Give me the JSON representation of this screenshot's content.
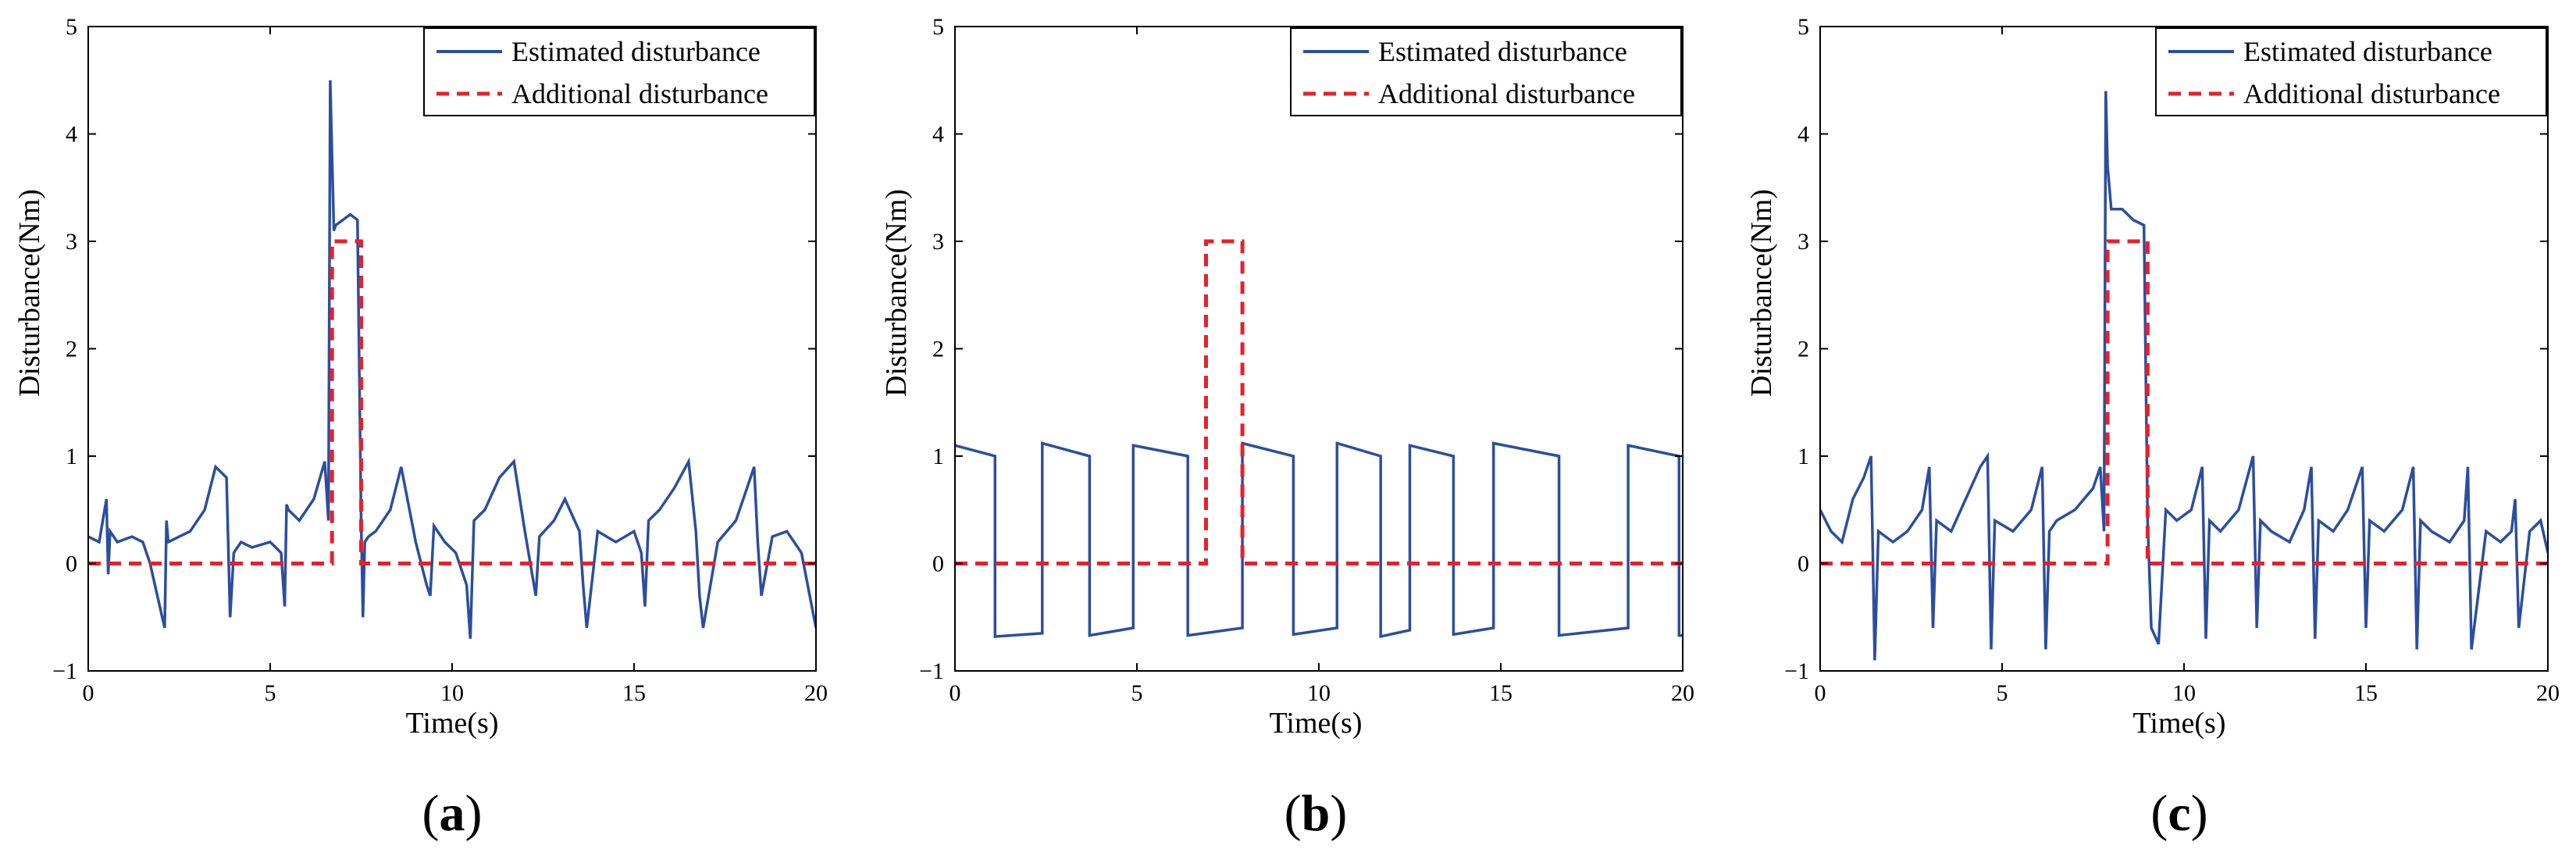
{
  "figure": {
    "background": "#ffffff",
    "estimated_color": "#2b4ea0",
    "additional_color": "#e8202a"
  },
  "chart_data": [
    {
      "type": "line",
      "panel": "a",
      "caption_open": "(",
      "caption_letter": "a",
      "caption_close": ")",
      "xlabel": "Time(s)",
      "ylabel": "Disturbance(Nm)",
      "xlim": [
        0,
        20
      ],
      "ylim": [
        -1,
        5
      ],
      "xticks": [
        0,
        5,
        10,
        15,
        20
      ],
      "yticks": [
        -1,
        0,
        1,
        2,
        3,
        4,
        5
      ],
      "xtick_labels": [
        "0",
        "5",
        "10",
        "15",
        "20"
      ],
      "ytick_labels": [
        "−1",
        "0",
        "1",
        "2",
        "3",
        "4",
        "5"
      ],
      "grid": false,
      "legend_position": "top-right",
      "series": [
        {
          "name": "Estimated disturbance",
          "style": "solid",
          "x": [
            0,
            0.3,
            0.5,
            0.55,
            0.6,
            0.8,
            1.2,
            1.5,
            1.7,
            1.9,
            2.1,
            2.15,
            2.2,
            2.5,
            2.8,
            3.2,
            3.5,
            3.8,
            3.9,
            4.0,
            4.2,
            4.5,
            5.0,
            5.3,
            5.4,
            5.45,
            5.5,
            5.8,
            6.2,
            6.5,
            6.6,
            6.65,
            6.7,
            6.75,
            6.8,
            7.0,
            7.2,
            7.4,
            7.5,
            7.55,
            7.6,
            7.7,
            7.9,
            8.3,
            8.6,
            9.0,
            9.3,
            9.4,
            9.5,
            9.8,
            10.1,
            10.4,
            10.5,
            10.6,
            10.9,
            11.3,
            11.7,
            12.0,
            12.2,
            12.3,
            12.4,
            12.8,
            13.1,
            13.5,
            13.6,
            13.7,
            14.0,
            14.5,
            15.0,
            15.2,
            15.3,
            15.4,
            15.7,
            16.1,
            16.5,
            16.7,
            16.8,
            16.9,
            17.3,
            17.8,
            18.1,
            18.3,
            18.4,
            18.5,
            18.8,
            19.2,
            19.6,
            20.0
          ],
          "y": [
            0.25,
            0.2,
            0.6,
            -0.1,
            0.3,
            0.2,
            0.25,
            0.2,
            0.0,
            -0.3,
            -0.6,
            0.4,
            0.2,
            0.25,
            0.3,
            0.5,
            0.9,
            0.8,
            -0.5,
            0.1,
            0.2,
            0.15,
            0.2,
            0.1,
            -0.4,
            0.55,
            0.5,
            0.4,
            0.6,
            0.95,
            0.4,
            4.5,
            3.8,
            3.1,
            3.15,
            3.2,
            3.25,
            3.2,
            0.4,
            -0.5,
            0.2,
            0.25,
            0.3,
            0.5,
            0.9,
            0.2,
            -0.2,
            -0.3,
            0.35,
            0.2,
            0.1,
            -0.2,
            -0.7,
            0.4,
            0.5,
            0.8,
            0.95,
            0.3,
            -0.1,
            -0.3,
            0.25,
            0.4,
            0.6,
            0.3,
            -0.2,
            -0.6,
            0.3,
            0.2,
            0.3,
            0.1,
            -0.4,
            0.4,
            0.5,
            0.7,
            0.95,
            0.3,
            -0.3,
            -0.6,
            0.2,
            0.4,
            0.7,
            0.9,
            0.2,
            -0.3,
            0.25,
            0.3,
            0.1,
            -0.6
          ]
        },
        {
          "name": "Additional disturbance",
          "style": "dashed",
          "x": [
            0,
            6.7,
            6.7,
            7.5,
            7.5,
            20
          ],
          "y": [
            0,
            0,
            3,
            3,
            0,
            0
          ]
        }
      ]
    },
    {
      "type": "line",
      "panel": "b",
      "caption_open": "(",
      "caption_letter": "b",
      "caption_close": ")",
      "xlabel": "Time(s)",
      "ylabel": "Disturbance(Nm)",
      "xlim": [
        0,
        20
      ],
      "ylim": [
        -1,
        5
      ],
      "xticks": [
        0,
        5,
        10,
        15,
        20
      ],
      "yticks": [
        -1,
        0,
        1,
        2,
        3,
        4,
        5
      ],
      "xtick_labels": [
        "0",
        "5",
        "10",
        "15",
        "20"
      ],
      "ytick_labels": [
        "−1",
        "0",
        "1",
        "2",
        "3",
        "4",
        "5"
      ],
      "grid": false,
      "legend_position": "top-right",
      "series": [
        {
          "name": "Estimated disturbance",
          "style": "solid",
          "x": [
            0,
            1.1,
            1.1,
            2.4,
            2.4,
            3.7,
            3.7,
            4.9,
            4.9,
            6.4,
            6.4,
            7.9,
            7.9,
            9.3,
            9.3,
            10.5,
            10.5,
            11.7,
            11.7,
            12.5,
            12.5,
            13.7,
            13.7,
            14.8,
            14.8,
            16.6,
            16.6,
            18.5,
            18.5,
            19.9,
            19.9,
            20.0
          ],
          "y": [
            1.1,
            1.0,
            -0.68,
            -0.65,
            1.12,
            1.0,
            -0.67,
            -0.6,
            1.1,
            1.0,
            -0.67,
            -0.6,
            1.12,
            1.0,
            -0.66,
            -0.6,
            1.12,
            1.0,
            -0.68,
            -0.62,
            1.1,
            1.0,
            -0.66,
            -0.6,
            1.12,
            1.0,
            -0.67,
            -0.6,
            1.1,
            1.0,
            -0.67,
            -0.67
          ]
        },
        {
          "name": "Additional disturbance",
          "style": "dashed",
          "x": [
            0,
            6.9,
            6.9,
            7.9,
            7.9,
            20
          ],
          "y": [
            0,
            0,
            3,
            3,
            0,
            0
          ]
        }
      ]
    },
    {
      "type": "line",
      "panel": "c",
      "caption_open": "(",
      "caption_letter": "c",
      "caption_close": ")",
      "xlabel": "Time(s)",
      "ylabel": "Disturbance(Nm)",
      "xlim": [
        0,
        20
      ],
      "ylim": [
        -1,
        5
      ],
      "xticks": [
        0,
        5,
        10,
        15,
        20
      ],
      "yticks": [
        -1,
        0,
        1,
        2,
        3,
        4,
        5
      ],
      "xtick_labels": [
        "0",
        "5",
        "10",
        "15",
        "20"
      ],
      "ytick_labels": [
        "−1",
        "0",
        "1",
        "2",
        "3",
        "4",
        "5"
      ],
      "grid": false,
      "legend_position": "top-right",
      "series": [
        {
          "name": "Estimated disturbance",
          "style": "solid",
          "x": [
            0,
            0.3,
            0.6,
            0.9,
            1.2,
            1.4,
            1.5,
            1.6,
            2.0,
            2.4,
            2.8,
            3.0,
            3.1,
            3.2,
            3.6,
            4.0,
            4.4,
            4.6,
            4.7,
            4.8,
            5.3,
            5.8,
            6.1,
            6.2,
            6.3,
            6.5,
            7.0,
            7.5,
            7.7,
            7.8,
            7.85,
            7.9,
            8.0,
            8.3,
            8.6,
            8.9,
            9.0,
            9.1,
            9.3,
            9.5,
            9.8,
            10.2,
            10.5,
            10.6,
            10.7,
            11.0,
            11.5,
            11.9,
            12.0,
            12.1,
            12.4,
            12.9,
            13.3,
            13.5,
            13.6,
            13.7,
            14.1,
            14.5,
            14.9,
            15.0,
            15.1,
            15.5,
            16.0,
            16.3,
            16.4,
            16.5,
            16.8,
            17.3,
            17.7,
            17.8,
            17.9,
            18.3,
            18.7,
            19.0,
            19.1,
            19.2,
            19.5,
            19.8,
            20.0
          ],
          "y": [
            0.5,
            0.3,
            0.2,
            0.6,
            0.8,
            1.0,
            -0.9,
            0.3,
            0.2,
            0.3,
            0.5,
            0.9,
            -0.6,
            0.4,
            0.3,
            0.6,
            0.9,
            1.0,
            -0.8,
            0.4,
            0.3,
            0.5,
            0.9,
            -0.8,
            0.3,
            0.4,
            0.5,
            0.7,
            0.9,
            0.3,
            4.4,
            3.7,
            3.3,
            3.3,
            3.2,
            3.15,
            0.4,
            -0.6,
            -0.75,
            0.5,
            0.4,
            0.5,
            0.9,
            -0.7,
            0.4,
            0.3,
            0.5,
            1.0,
            -0.6,
            0.4,
            0.3,
            0.2,
            0.5,
            0.9,
            -0.7,
            0.4,
            0.3,
            0.5,
            0.9,
            -0.6,
            0.4,
            0.3,
            0.5,
            0.9,
            -0.8,
            0.4,
            0.3,
            0.2,
            0.4,
            0.9,
            -0.8,
            0.3,
            0.2,
            0.3,
            0.6,
            -0.6,
            0.3,
            0.4,
            0.1
          ]
        },
        {
          "name": "Additional disturbance",
          "style": "dashed",
          "x": [
            0,
            7.9,
            7.9,
            9.0,
            9.0,
            20
          ],
          "y": [
            0,
            0,
            3,
            3,
            0,
            0
          ]
        }
      ]
    }
  ]
}
